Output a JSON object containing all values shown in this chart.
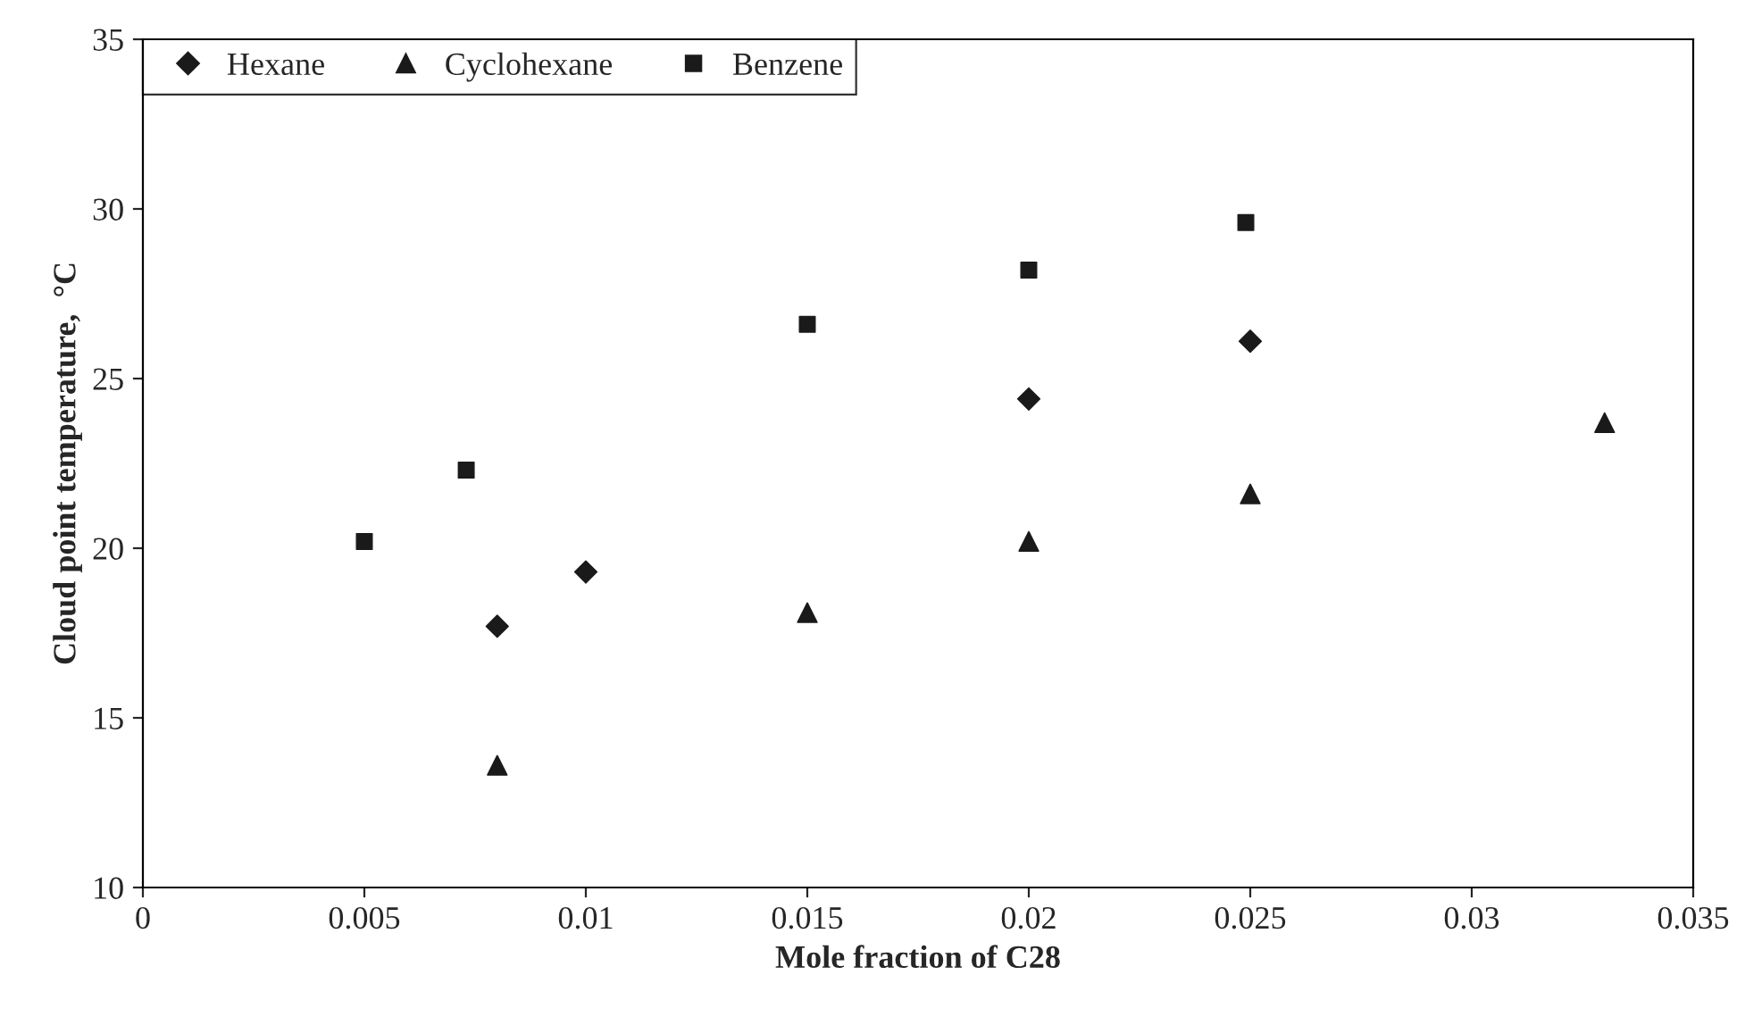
{
  "chart_data": {
    "type": "scatter",
    "xlabel": "Mole fraction of C28",
    "ylabel": "Cloud point temperature,  °C",
    "series": [
      {
        "name": "Hexane",
        "color": "#1a1a1a",
        "marker": "diamond",
        "x": [
          0.008,
          0.01,
          0.02,
          0.025
        ],
        "values": [
          17.7,
          19.3,
          24.4,
          26.1
        ]
      },
      {
        "name": "Cyclohexane",
        "color": "#1a1a1a",
        "marker": "triangle",
        "x": [
          0.008,
          0.015,
          0.02,
          0.025,
          0.033
        ],
        "values": [
          13.6,
          18.1,
          20.2,
          21.6,
          23.7
        ]
      },
      {
        "name": "Benzene",
        "color": "#1a1a1a",
        "marker": "square",
        "x": [
          0.005,
          0.0073,
          0.015,
          0.02,
          0.0249
        ],
        "values": [
          20.2,
          22.3,
          26.6,
          28.2,
          29.6
        ]
      }
    ],
    "xlim": [
      0,
      0.035
    ],
    "xticks": [
      0,
      0.005,
      0.01,
      0.015,
      0.02,
      0.025,
      0.03,
      0.035
    ],
    "ylim": [
      10,
      35
    ],
    "yticks": [
      10,
      15,
      20,
      25,
      30,
      35
    ],
    "grid": false,
    "legend": "top left"
  }
}
